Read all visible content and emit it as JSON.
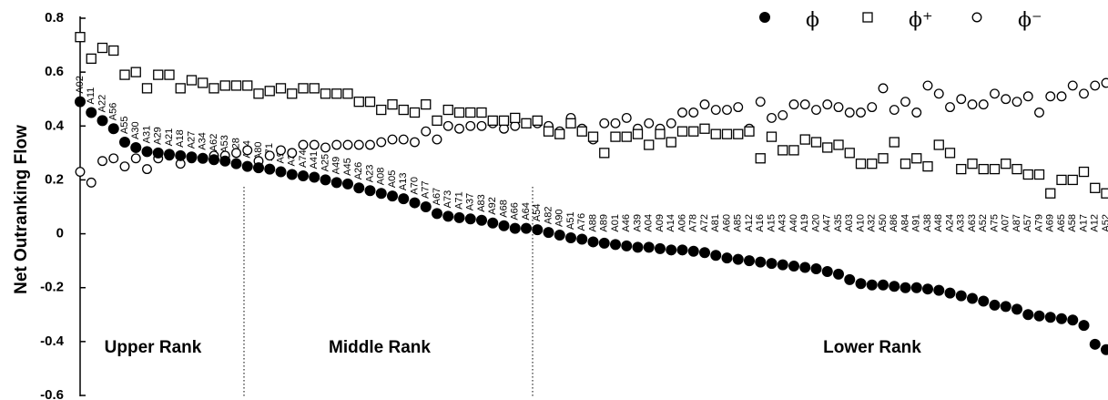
{
  "chart_data": {
    "type": "scatter",
    "y_label": "Net Outranking Flow",
    "annotations": [
      "Upper Rank",
      "Middle Rank",
      "Lower Rank"
    ],
    "categories": [
      "A02",
      "A11",
      "A22",
      "A56",
      "A55",
      "A30",
      "A31",
      "A29",
      "A21",
      "A18",
      "A27",
      "A34",
      "A62",
      "A53",
      "A28",
      "A44",
      "A80",
      "A71",
      "A93",
      "A36",
      "A74",
      "A41",
      "A25",
      "A49",
      "A45",
      "A26",
      "A23",
      "A08",
      "A05",
      "A13",
      "A70",
      "A77",
      "A67",
      "A73",
      "A71",
      "A37",
      "A83",
      "A92",
      "A68",
      "A66",
      "A64",
      "A54",
      "A82",
      "A90",
      "A51",
      "A76",
      "A88",
      "A89",
      "A01",
      "A46",
      "A39",
      "A04",
      "A09",
      "A14",
      "A06",
      "A78",
      "A72",
      "A81",
      "A60",
      "A85",
      "A12",
      "A16",
      "A15",
      "A43",
      "A40",
      "A19",
      "A20",
      "A47",
      "A35",
      "A03",
      "A10",
      "A32",
      "A50",
      "A86",
      "A84",
      "A91",
      "A38",
      "A48",
      "A24",
      "A33",
      "A63",
      "A52",
      "A75",
      "A07",
      "A87",
      "A57",
      "A79",
      "A69",
      "A65",
      "A58",
      "A17",
      "A12",
      "A52"
    ],
    "series": [
      {
        "name": "ϕ",
        "color": "#000000",
        "marker": "filled-circle",
        "values": [
          0.49,
          0.45,
          0.42,
          0.39,
          0.34,
          0.32,
          0.305,
          0.3,
          0.295,
          0.29,
          0.285,
          0.28,
          0.275,
          0.27,
          0.26,
          0.25,
          0.245,
          0.24,
          0.23,
          0.22,
          0.215,
          0.21,
          0.2,
          0.19,
          0.185,
          0.17,
          0.16,
          0.15,
          0.14,
          0.13,
          0.115,
          0.1,
          0.075,
          0.065,
          0.06,
          0.055,
          0.05,
          0.04,
          0.03,
          0.02,
          0.02,
          0.015,
          0.005,
          -0.005,
          -0.015,
          -0.02,
          -0.03,
          -0.035,
          -0.04,
          -0.045,
          -0.05,
          -0.05,
          -0.055,
          -0.06,
          -0.06,
          -0.065,
          -0.07,
          -0.08,
          -0.09,
          -0.095,
          -0.1,
          -0.105,
          -0.11,
          -0.115,
          -0.12,
          -0.125,
          -0.13,
          -0.14,
          -0.15,
          -0.17,
          -0.185,
          -0.19,
          -0.19,
          -0.195,
          -0.2,
          -0.2,
          -0.205,
          -0.21,
          -0.22,
          -0.23,
          -0.24,
          -0.25,
          -0.265,
          -0.27,
          -0.28,
          -0.3,
          -0.305,
          -0.31,
          -0.315,
          -0.32,
          -0.34,
          -0.41,
          -0.43
        ]
      },
      {
        "name": "ϕ⁺",
        "color": "#000000",
        "marker": "open-square",
        "values": [
          0.73,
          0.65,
          0.69,
          0.68,
          0.59,
          0.6,
          0.54,
          0.59,
          0.59,
          0.54,
          0.57,
          0.56,
          0.54,
          0.55,
          0.55,
          0.55,
          0.52,
          0.53,
          0.54,
          0.52,
          0.54,
          0.54,
          0.52,
          0.52,
          0.52,
          0.49,
          0.49,
          0.46,
          0.48,
          0.46,
          0.45,
          0.48,
          0.42,
          0.46,
          0.45,
          0.45,
          0.45,
          0.42,
          0.42,
          0.43,
          0.41,
          0.42,
          0.38,
          0.37,
          0.41,
          0.38,
          0.36,
          0.3,
          0.36,
          0.36,
          0.37,
          0.33,
          0.37,
          0.34,
          0.38,
          0.38,
          0.39,
          0.37,
          0.37,
          0.37,
          0.38,
          0.28,
          0.36,
          0.31,
          0.31,
          0.35,
          0.34,
          0.32,
          0.33,
          0.3,
          0.26,
          0.26,
          0.28,
          0.34,
          0.26,
          0.28,
          0.25,
          0.33,
          0.3,
          0.24,
          0.26,
          0.24,
          0.24,
          0.26,
          0.24,
          0.22,
          0.22,
          0.15,
          0.2,
          0.2,
          0.23,
          0.17,
          0.15
        ]
      },
      {
        "name": "ϕ⁻",
        "color": "#000000",
        "marker": "open-circle",
        "values": [
          0.23,
          0.19,
          0.27,
          0.28,
          0.25,
          0.28,
          0.24,
          0.28,
          0.29,
          0.26,
          0.28,
          0.28,
          0.29,
          0.29,
          0.3,
          0.31,
          0.27,
          0.29,
          0.31,
          0.3,
          0.33,
          0.33,
          0.32,
          0.33,
          0.33,
          0.33,
          0.33,
          0.34,
          0.35,
          0.35,
          0.34,
          0.38,
          0.35,
          0.4,
          0.39,
          0.4,
          0.4,
          0.41,
          0.39,
          0.4,
          0.41,
          0.41,
          0.4,
          0.38,
          0.43,
          0.39,
          0.35,
          0.41,
          0.41,
          0.43,
          0.39,
          0.41,
          0.39,
          0.41,
          0.45,
          0.45,
          0.48,
          0.46,
          0.46,
          0.47,
          0.39,
          0.49,
          0.43,
          0.44,
          0.48,
          0.48,
          0.46,
          0.48,
          0.47,
          0.45,
          0.45,
          0.47,
          0.54,
          0.46,
          0.49,
          0.45,
          0.55,
          0.52,
          0.47,
          0.5,
          0.48,
          0.48,
          0.52,
          0.5,
          0.49,
          0.51,
          0.45,
          0.51,
          0.51,
          0.55,
          0.52,
          0.55,
          0.56
        ]
      }
    ],
    "ylim": [
      -0.6,
      0.8
    ],
    "yticks": [
      -0.6,
      -0.4,
      -0.2,
      0,
      0.2,
      0.4,
      0.6,
      0.8
    ],
    "grid": false,
    "legend": "top-right"
  }
}
